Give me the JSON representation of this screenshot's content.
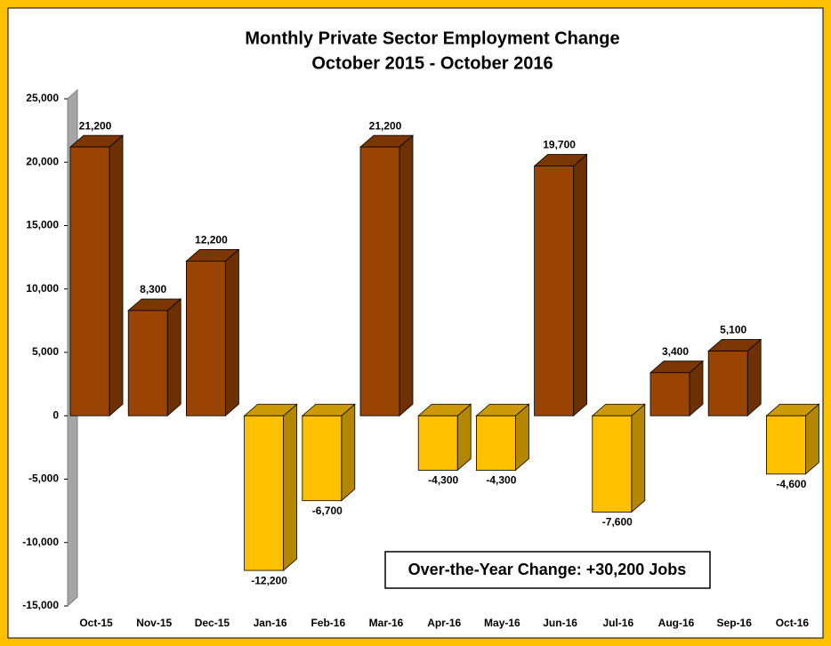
{
  "chart_data": {
    "type": "bar3d",
    "title": "Monthly Private Sector Employment Change",
    "subtitle": "October 2015 - October 2016",
    "categories": [
      "Oct-15",
      "Nov-15",
      "Dec-15",
      "Jan-16",
      "Feb-16",
      "Mar-16",
      "Apr-16",
      "May-16",
      "Jun-16",
      "Jul-16",
      "Aug-16",
      "Sep-16",
      "Oct-16"
    ],
    "values": [
      21200,
      8300,
      12200,
      -12200,
      -6700,
      21200,
      -4300,
      -4300,
      19700,
      -7600,
      3400,
      5100,
      -4600
    ],
    "value_labels": [
      "21,200",
      "8,300",
      "12,200",
      "-12,200",
      "-6,700",
      "21,200",
      "-4,300",
      "-4,300",
      "19,700",
      "-7,600",
      "3,400",
      "5,100",
      "-4,600"
    ],
    "positive_color": "#9a4403",
    "negative_color": "#ffc000",
    "ylim": [
      -15000,
      25000
    ],
    "yticks": [
      {
        "value": -15000,
        "label": "-15,000"
      },
      {
        "value": -10000,
        "label": "-10,000"
      },
      {
        "value": -5000,
        "label": "-5,000"
      },
      0,
      {
        "value": 5000,
        "label": "5,000"
      },
      {
        "value": 10000,
        "label": "10,000"
      },
      {
        "value": 15000,
        "label": "15,000"
      },
      {
        "value": 20000,
        "label": "20,000"
      },
      {
        "value": 25000,
        "label": "25,000"
      }
    ],
    "annotation": "Over-the-Year Change: +30,200 Jobs"
  }
}
